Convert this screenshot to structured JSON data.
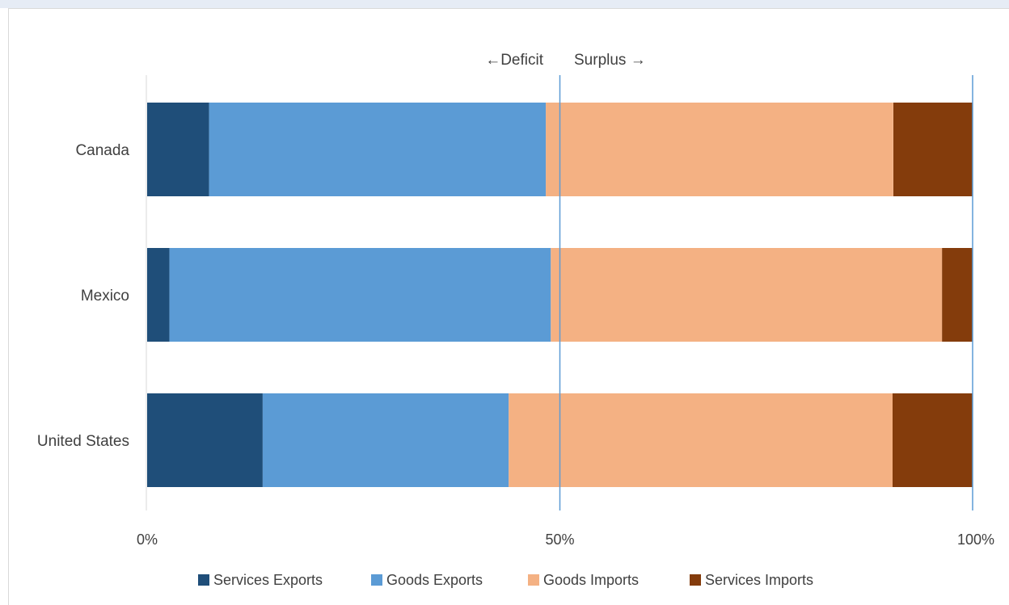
{
  "chart_data": {
    "type": "bar",
    "orientation": "horizontal",
    "stacked": "percent",
    "categories": [
      "Canada",
      "Mexico",
      "United States"
    ],
    "series": [
      {
        "name": "Services Exports",
        "values": [
          7.5,
          2.7,
          14.0
        ],
        "color": "#1f4e79"
      },
      {
        "name": "Goods Exports",
        "values": [
          40.8,
          46.2,
          29.8
        ],
        "color": "#5b9bd5"
      },
      {
        "name": "Goods Imports",
        "values": [
          42.1,
          47.4,
          46.5
        ],
        "color": "#f4b183"
      },
      {
        "name": "Services Imports",
        "values": [
          9.6,
          3.7,
          9.7
        ],
        "color": "#843c0c"
      }
    ],
    "xlim": [
      0,
      100
    ],
    "x_ticks": [
      "0%",
      "50%",
      "100%"
    ],
    "reference_lines": [
      50,
      100
    ],
    "annotations": [
      "←Deficit",
      "Surplus →"
    ],
    "legend_position": "bottom",
    "grid": false
  }
}
